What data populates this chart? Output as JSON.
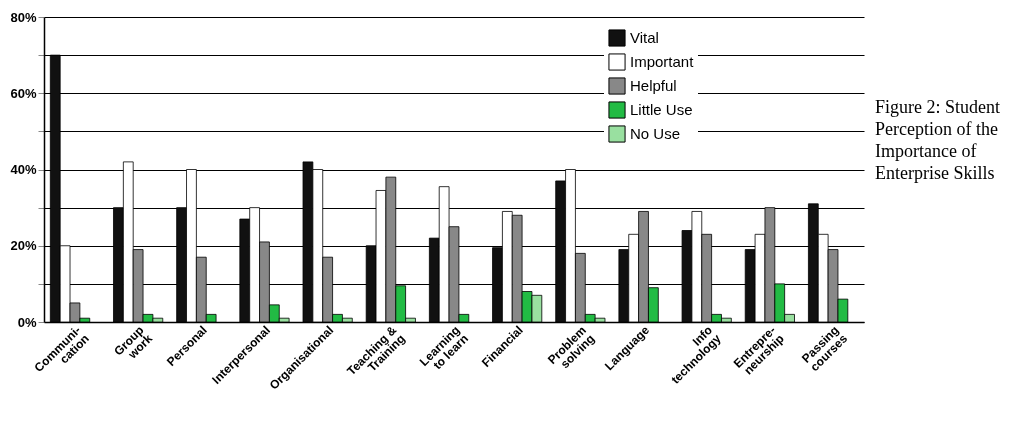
{
  "chart_data": {
    "type": "bar",
    "title": "Figure 2: Student Perception of the Importance of Enterprise Skills",
    "categories": [
      "Communi-\ncation",
      "Group\nwork",
      "Personal",
      "Interpersonal",
      "Organisational",
      "Teaching &\nTraining",
      "Learning\nto learn",
      "Financial",
      "Problem\nsolving",
      "Language",
      "Info\ntechnology",
      "Entrepre-\nneurship",
      "Passing\ncourses"
    ],
    "series": [
      {
        "name": "Vital",
        "color": "#111111",
        "values": [
          70,
          30,
          30,
          27,
          42,
          20,
          22,
          19.5,
          37,
          19,
          24,
          19,
          31
        ]
      },
      {
        "name": "Important",
        "color": "#ffffff",
        "values": [
          20,
          42,
          40,
          30,
          40,
          34.5,
          35.5,
          29,
          40,
          23,
          29,
          23,
          23
        ]
      },
      {
        "name": "Helpful",
        "color": "#888888",
        "values": [
          5,
          19,
          17,
          21,
          17,
          38,
          25,
          28,
          18,
          29,
          23,
          30,
          19
        ]
      },
      {
        "name": "Little Use",
        "color": "#22bb44",
        "values": [
          1,
          2,
          2,
          4.5,
          2,
          9.5,
          2,
          8,
          2,
          9,
          2,
          10,
          6
        ]
      },
      {
        "name": "No Use",
        "color": "#99e0a0",
        "values": [
          0,
          1,
          0,
          1,
          1,
          1,
          0,
          7,
          1,
          0,
          1,
          2,
          0
        ]
      }
    ],
    "ylim": [
      0,
      80
    ],
    "yticks": [
      {
        "value": 0,
        "label": "0%"
      },
      {
        "value": 10,
        "label": null
      },
      {
        "value": 20,
        "label": "20%"
      },
      {
        "value": 30,
        "label": null
      },
      {
        "value": 40,
        "label": "40%"
      },
      {
        "value": 50,
        "label": null
      },
      {
        "value": 60,
        "label": "60%"
      },
      {
        "value": 70,
        "label": null
      },
      {
        "value": 80,
        "label": "80%"
      }
    ],
    "grid": "y",
    "legend": "top right"
  }
}
